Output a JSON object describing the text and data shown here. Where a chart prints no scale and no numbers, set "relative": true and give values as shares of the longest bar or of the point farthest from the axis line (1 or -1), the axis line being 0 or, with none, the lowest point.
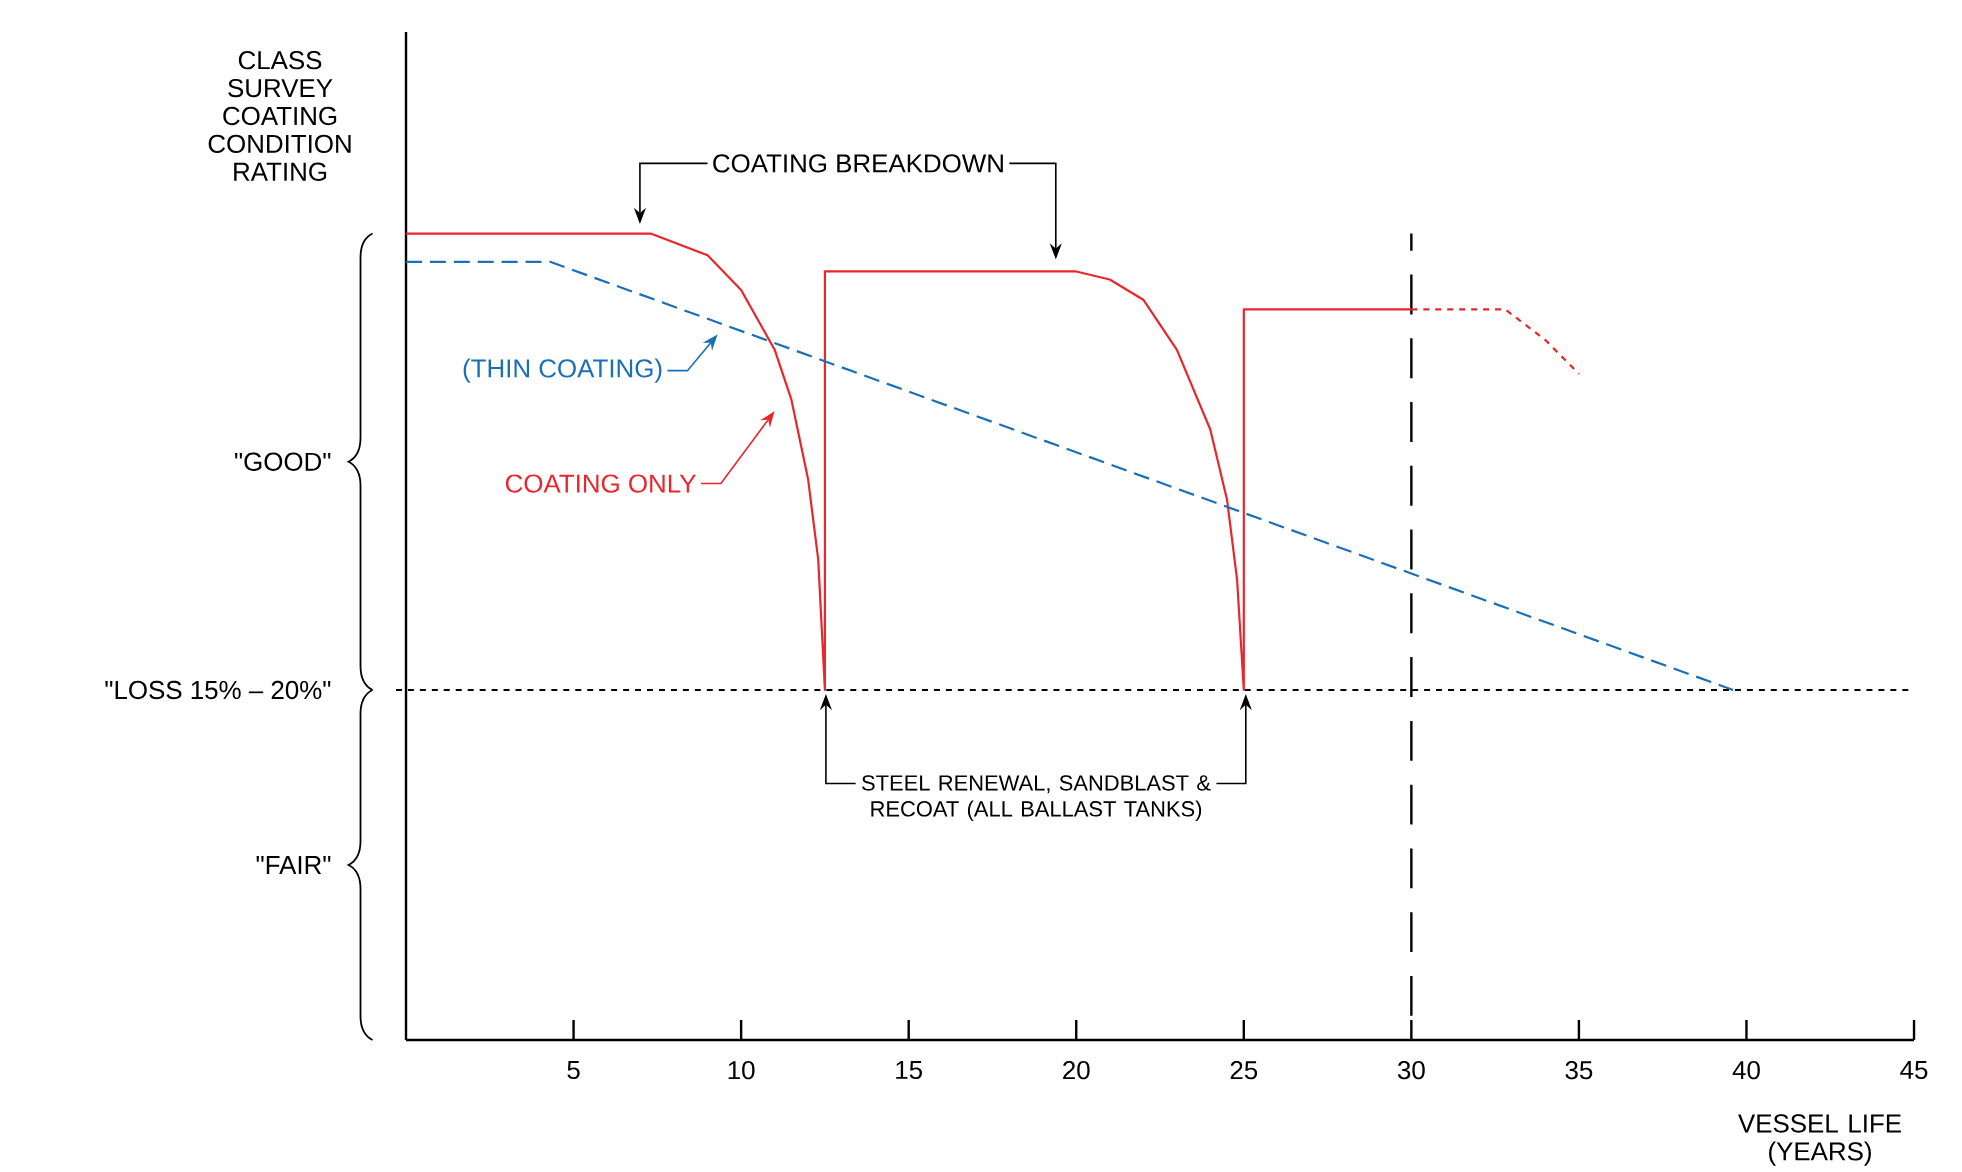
{
  "chart_data": {
    "type": "line",
    "relative": true,
    "ylabel": "CLASS SURVEY COATING CONDITION RATING",
    "xlabel": "VESSEL LIFE (YEARS)",
    "xlim": [
      0,
      45
    ],
    "xticks": [
      5,
      10,
      15,
      20,
      25,
      30,
      35,
      40,
      45
    ],
    "series": [
      {
        "name": "COATING ONLY",
        "color": "#e8262c",
        "line_style": "solid",
        "x": [
          0,
          7.3,
          9,
          10,
          11,
          11.5,
          12,
          12.3,
          12.5,
          12.5,
          20,
          21,
          22,
          23,
          24,
          24.5,
          24.8,
          25,
          25,
          30
        ],
        "values": [
          1,
          1,
          0.973,
          0.93,
          0.856,
          0.794,
          0.695,
          0.596,
          0.434,
          0.953,
          0.953,
          0.943,
          0.918,
          0.856,
          0.757,
          0.67,
          0.571,
          0.434,
          0.906,
          0.906
        ]
      },
      {
        "color": "#e8262c",
        "line_style": "dotted",
        "x": [
          30,
          32.8,
          34,
          35
        ],
        "values": [
          0.906,
          0.906,
          0.868,
          0.826
        ]
      },
      {
        "name": "(THIN COATING)",
        "color": "#1a6fb8",
        "line_style": "dashed",
        "x": [
          0,
          4.3,
          39.6
        ],
        "values": [
          0.965,
          0.965,
          0.434
        ]
      }
    ],
    "ref_lines": [
      {
        "axis": "y",
        "value": 0.434,
        "label": "\"LOSS 15% – 20%\"",
        "line_style": "dotted",
        "color": "#000000"
      },
      {
        "axis": "x",
        "value": 30,
        "line_style": "dashed",
        "color": "#000000"
      }
    ],
    "annotations": [
      "COATING BREAKDOWN",
      "STEEL RENEWAL, SANDBLAST & RECOAT (ALL BALLAST TANKS)",
      "\"GOOD\"",
      "\"FAIR\""
    ]
  }
}
